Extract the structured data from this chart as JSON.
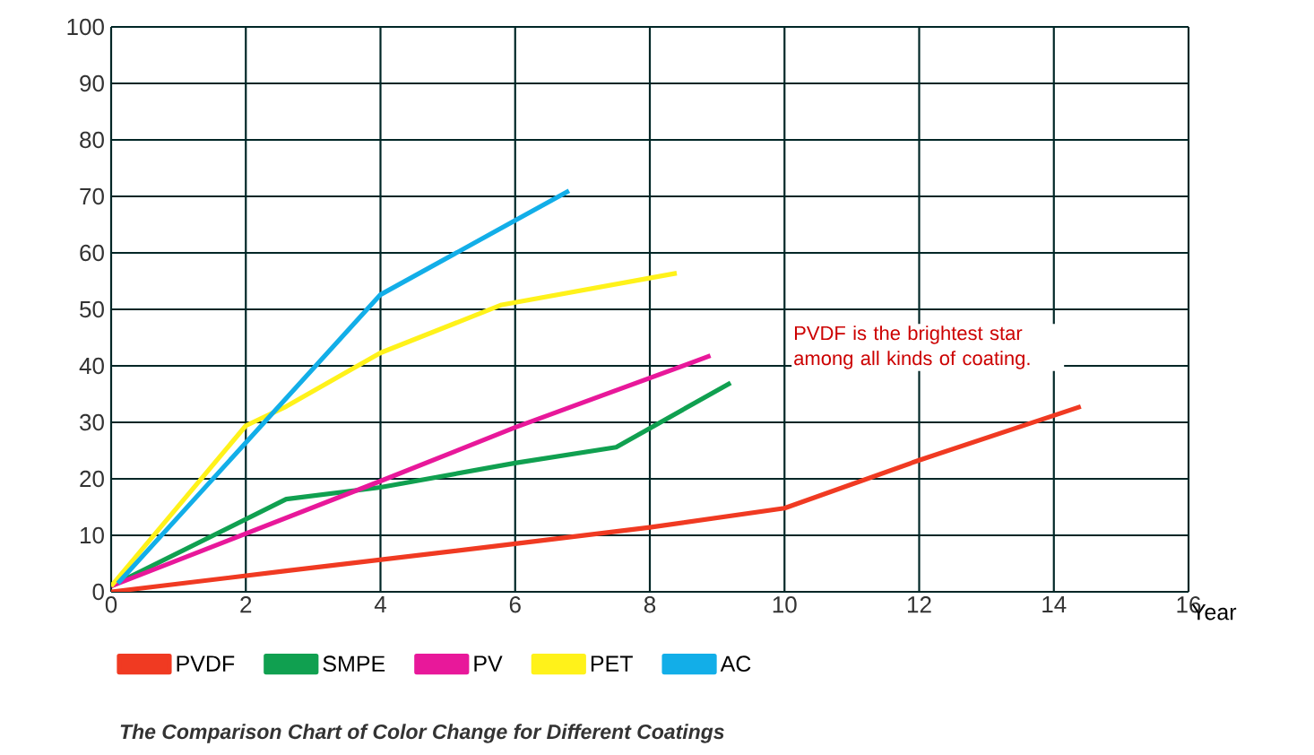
{
  "chart_data": {
    "type": "line",
    "title": "The Comparison Chart of Color Change for Different Coatings",
    "xlabel": "Year",
    "xlim": [
      0,
      16
    ],
    "ylim": [
      0,
      100
    ],
    "xticks": [
      0,
      2,
      4,
      6,
      8,
      10,
      12,
      14,
      16
    ],
    "yticks": [
      0,
      10,
      20,
      30,
      40,
      50,
      60,
      70,
      80,
      90,
      100
    ],
    "grid": true,
    "legend": "bottom",
    "marker": "none",
    "line_style": "solid",
    "annotations": [
      "PVDF is the brightest star among all kinds of coating."
    ],
    "series": [
      {
        "name": "PVDF",
        "color": "#f03a22",
        "x": [
          0,
          2.6,
          6,
          8,
          10,
          12,
          14.4
        ],
        "values": [
          0,
          3.7,
          8.5,
          11.4,
          14.8,
          23.3,
          32.8
        ]
      },
      {
        "name": "SMPE",
        "color": "#10a050",
        "x": [
          0,
          2.6,
          4,
          6,
          7.5,
          9.2
        ],
        "values": [
          1,
          16.4,
          18.5,
          22.8,
          25.6,
          37
        ]
      },
      {
        "name": "PV",
        "color": "#e8189a",
        "x": [
          0,
          4,
          6,
          8.9
        ],
        "values": [
          1,
          19.6,
          29.1,
          41.8
        ]
      },
      {
        "name": "PET",
        "color": "#fff21a",
        "x": [
          0,
          2,
          2.6,
          4,
          5.8,
          8.4
        ],
        "values": [
          1,
          29.4,
          32.8,
          42.3,
          50.8,
          56.4
        ]
      },
      {
        "name": "AC",
        "color": "#12aee8",
        "x": [
          0.1,
          4,
          6.8
        ],
        "values": [
          1.5,
          52.6,
          71
        ]
      }
    ]
  }
}
